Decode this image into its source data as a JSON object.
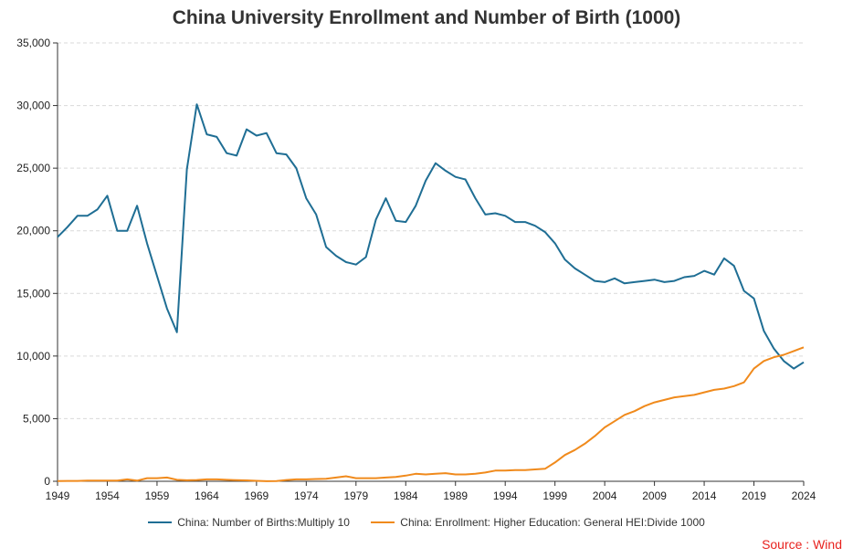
{
  "chart_data": {
    "type": "line",
    "title": "China University Enrollment and Number of Birth (1000)",
    "xlim": [
      1949,
      2024
    ],
    "ylim": [
      0,
      35000
    ],
    "yticks": [
      0,
      5000,
      10000,
      15000,
      20000,
      25000,
      30000,
      35000
    ],
    "ytick_labels": [
      "0",
      "5,000",
      "10,000",
      "15,000",
      "20,000",
      "25,000",
      "30,000",
      "35,000"
    ],
    "xticks": [
      1949,
      1954,
      1959,
      1964,
      1969,
      1974,
      1979,
      1984,
      1989,
      1994,
      1999,
      2004,
      2009,
      2014,
      2019,
      2024
    ],
    "grid": "horizontal-dashed",
    "legend_position": "bottom",
    "series": [
      {
        "name": "China: Number of Births:Multiply 10",
        "color": "#1f6e94",
        "x": [
          1949,
          1950,
          1951,
          1952,
          1953,
          1954,
          1955,
          1956,
          1957,
          1958,
          1959,
          1960,
          1961,
          1962,
          1963,
          1964,
          1965,
          1966,
          1967,
          1968,
          1969,
          1970,
          1971,
          1972,
          1973,
          1974,
          1975,
          1976,
          1977,
          1978,
          1979,
          1980,
          1981,
          1982,
          1983,
          1984,
          1985,
          1986,
          1987,
          1988,
          1989,
          1990,
          1991,
          1992,
          1993,
          1994,
          1995,
          1996,
          1997,
          1998,
          1999,
          2000,
          2001,
          2002,
          2003,
          2004,
          2005,
          2006,
          2007,
          2008,
          2009,
          2010,
          2011,
          2012,
          2013,
          2014,
          2015,
          2016,
          2017,
          2018,
          2019,
          2020,
          2021,
          2022,
          2023,
          2024
        ],
        "values": [
          19500,
          20300,
          21200,
          21200,
          21700,
          22800,
          20000,
          20000,
          22000,
          19000,
          16400,
          13800,
          11900,
          24900,
          30100,
          27700,
          27500,
          26200,
          26000,
          28100,
          27600,
          27800,
          26200,
          26100,
          25000,
          22600,
          21300,
          18700,
          18000,
          17500,
          17300,
          17900,
          20900,
          22600,
          20800,
          20700,
          22000,
          24000,
          25400,
          24800,
          24300,
          24100,
          22600,
          21300,
          21400,
          21200,
          20700,
          20700,
          20400,
          19900,
          19000,
          17700,
          17000,
          16500,
          16000,
          15900,
          16200,
          15800,
          15900,
          16000,
          16100,
          15900,
          16000,
          16300,
          16400,
          16800,
          16500,
          17800,
          17200,
          15200,
          14600,
          12000,
          10600,
          9600,
          9000,
          9500
        ]
      },
      {
        "name": "China: Enrollment: Higher Education: General HEI:Divide 1000",
        "color": "#f08a1c",
        "x": [
          1949,
          1950,
          1951,
          1952,
          1953,
          1954,
          1955,
          1956,
          1957,
          1958,
          1959,
          1960,
          1961,
          1962,
          1963,
          1964,
          1965,
          1966,
          1967,
          1968,
          1969,
          1970,
          1971,
          1972,
          1973,
          1974,
          1975,
          1976,
          1977,
          1978,
          1979,
          1980,
          1981,
          1982,
          1983,
          1984,
          1985,
          1986,
          1987,
          1988,
          1989,
          1990,
          1991,
          1992,
          1993,
          1994,
          1995,
          1996,
          1997,
          1998,
          1999,
          2000,
          2001,
          2002,
          2003,
          2004,
          2005,
          2006,
          2007,
          2008,
          2009,
          2010,
          2011,
          2012,
          2013,
          2014,
          2015,
          2016,
          2017,
          2018,
          2019,
          2020,
          2021,
          2022,
          2023,
          2024
        ],
        "values": [
          20,
          30,
          30,
          50,
          50,
          50,
          50,
          150,
          50,
          250,
          250,
          300,
          120,
          80,
          100,
          150,
          150,
          120,
          90,
          70,
          40,
          10,
          20,
          100,
          150,
          150,
          180,
          200,
          300,
          400,
          250,
          250,
          250,
          300,
          350,
          450,
          600,
          550,
          600,
          650,
          550,
          550,
          600,
          700,
          850,
          850,
          900,
          900,
          950,
          1000,
          1500,
          2100,
          2500,
          3000,
          3600,
          4300,
          4800,
          5300,
          5600,
          6000,
          6300,
          6500,
          6700,
          6800,
          6900,
          7100,
          7300,
          7400,
          7600,
          7900,
          9000,
          9600,
          9900,
          10100,
          10400,
          10700
        ]
      }
    ],
    "source_note": "Source : Wind"
  }
}
